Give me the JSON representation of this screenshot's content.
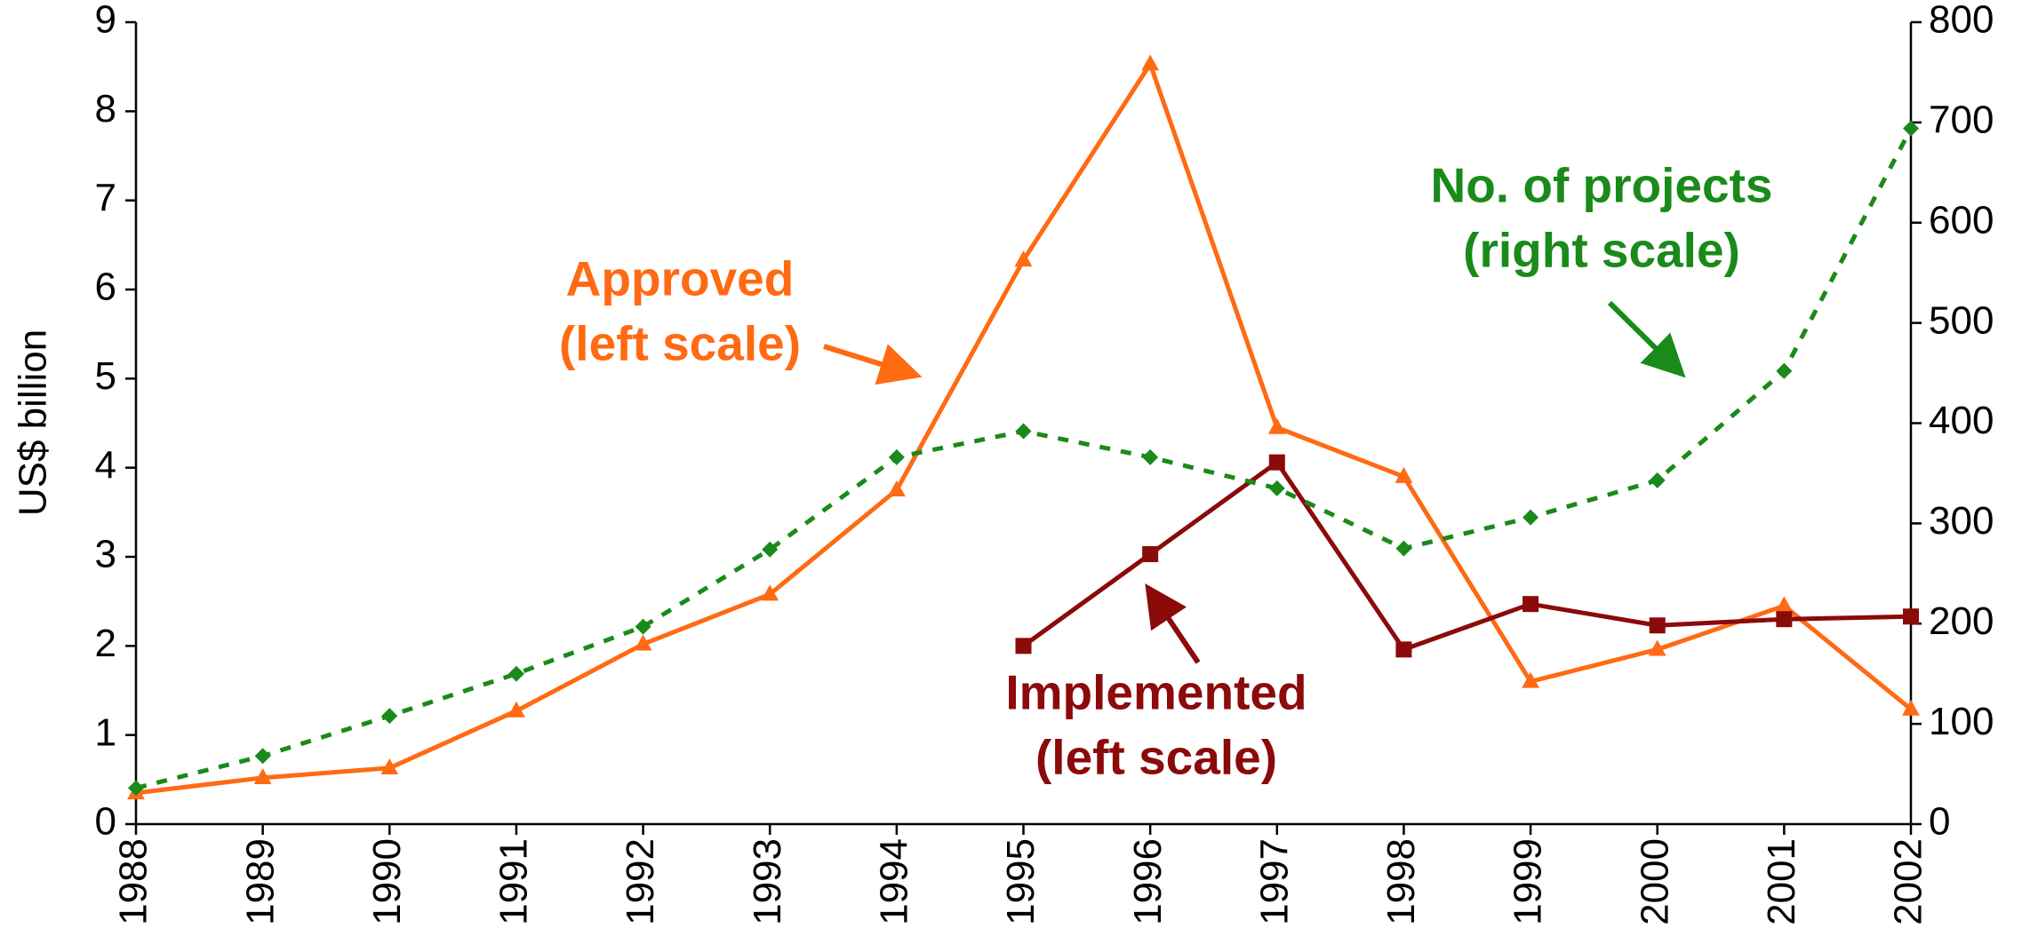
{
  "chart_data": {
    "type": "line",
    "y_label": "US$ billion",
    "categories": [
      "1988",
      "1989",
      "1990",
      "1991",
      "1992",
      "1993",
      "1994",
      "1995",
      "1996",
      "1997",
      "1998",
      "1999",
      "2000",
      "2001",
      "2002"
    ],
    "series": [
      {
        "name": "Approved",
        "color": "#ff6a13",
        "marker": "triangle",
        "values": [
          0.35,
          0.52,
          0.63,
          1.27,
          2.02,
          2.58,
          3.75,
          6.33,
          8.53,
          4.45,
          3.9,
          1.6,
          1.96,
          2.45,
          1.29
        ]
      },
      {
        "name": "Implemented",
        "color": "#8b0a0a",
        "marker": "square",
        "values": [
          null,
          null,
          null,
          null,
          null,
          null,
          null,
          2.0,
          3.03,
          4.06,
          1.96,
          2.47,
          2.23,
          2.3,
          2.33
        ]
      },
      {
        "name": "No. of projects",
        "color": "#1a8a1a",
        "marker": "diamond",
        "dashed": true,
        "axis": "y2",
        "values": [
          36,
          68,
          108,
          150,
          197,
          274,
          366,
          392,
          366,
          335,
          275,
          306,
          343,
          452,
          694
        ]
      }
    ],
    "ylim": [
      0,
      9
    ],
    "yticks": [
      0,
      1,
      2,
      3,
      4,
      5,
      6,
      7,
      8,
      9
    ],
    "y2lim": [
      0,
      800
    ],
    "y2ticks": [
      0,
      100,
      200,
      300,
      400,
      500,
      600,
      700,
      800
    ],
    "annotations": [
      {
        "lines": [
          "Approved",
          "(left scale)"
        ],
        "color": "#ff6a13"
      },
      {
        "lines": [
          "No. of projects",
          "(right scale)"
        ],
        "color": "#1a8a1a"
      },
      {
        "lines": [
          "Implemented",
          "(left scale)"
        ],
        "color": "#8b0a0a"
      }
    ]
  }
}
